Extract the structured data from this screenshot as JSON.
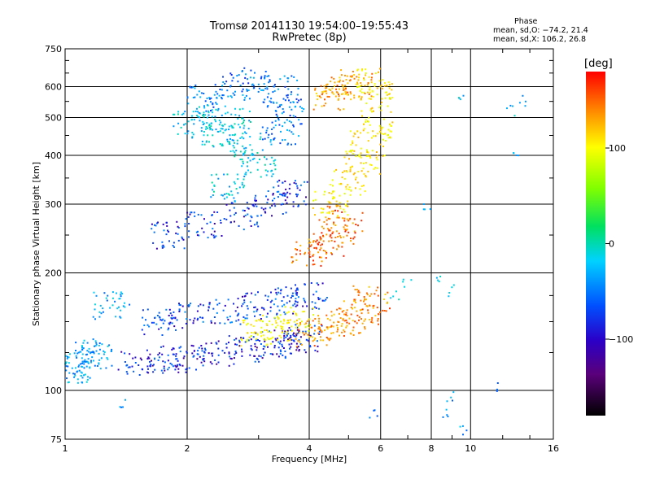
{
  "header": {
    "title_line1": "Tromsø 20141130 19:54:00–19:55:43",
    "title_line2": "RwPretec (8p)"
  },
  "phase_info": {
    "title": "Phase",
    "line_o": "mean, sd,O: −74.2, 21.4",
    "line_x": "mean, sd,X: 106.2, 26.8"
  },
  "colorbar": {
    "unit": "[deg]",
    "ticks": [
      "100",
      "0",
      "−100"
    ],
    "tick_values": [
      100,
      0,
      -100
    ],
    "range": [
      -180,
      180
    ],
    "colormap": "rainbow (black-purple-blue-cyan-green-yellow-orange-red)"
  },
  "chart_data": {
    "type": "scatter",
    "xlabel": "Frequency [MHz]",
    "ylabel": "Stationary phase Virtual Height [km]",
    "xscale": "log",
    "yscale": "log",
    "xlim": [
      1,
      16
    ],
    "ylim": [
      75,
      750
    ],
    "xticks": [
      1,
      2,
      4,
      6,
      8,
      10,
      16
    ],
    "xtick_labels": [
      "1",
      "2",
      "4",
      "6",
      "8",
      "10",
      "16"
    ],
    "yticks": [
      75,
      100,
      200,
      300,
      400,
      500,
      600,
      750
    ],
    "ytick_labels": [
      "75",
      "100",
      "200",
      "300",
      "400",
      "500",
      "600",
      "750"
    ],
    "grid": true,
    "color_encodes": "phase [deg]",
    "clusters": [
      {
        "desc": "O-mode lower trace (blue)",
        "phase": -110,
        "points": [
          [
            1.5,
            117
          ],
          [
            1.8,
            120
          ],
          [
            2.0,
            122
          ],
          [
            2.4,
            125
          ],
          [
            2.8,
            128
          ],
          [
            3.2,
            131
          ],
          [
            3.6,
            134
          ],
          [
            3.9,
            136
          ]
        ]
      },
      {
        "desc": "O-mode mid band (blue)",
        "phase": -100,
        "points": [
          [
            1.7,
            150
          ],
          [
            2.0,
            155
          ],
          [
            2.5,
            160
          ],
          [
            3.0,
            165
          ],
          [
            3.5,
            170
          ],
          [
            4.0,
            175
          ]
        ]
      },
      {
        "desc": "low-frequency scatter",
        "phase": -70,
        "points": [
          [
            1.03,
            118
          ],
          [
            1.05,
            113
          ],
          [
            1.1,
            125
          ],
          [
            1.2,
            123
          ],
          [
            1.3,
            165
          ]
        ]
      },
      {
        "desc": "O-mode upper band (blue)",
        "phase": -105,
        "points": [
          [
            1.8,
            250
          ],
          [
            2.2,
            265
          ],
          [
            2.7,
            280
          ],
          [
            3.2,
            300
          ],
          [
            3.6,
            320
          ]
        ]
      },
      {
        "desc": "F2 cyan region",
        "phase": -55,
        "points": [
          [
            2.0,
            480
          ],
          [
            2.3,
            500
          ],
          [
            2.6,
            490
          ],
          [
            2.4,
            450
          ],
          [
            2.8,
            420
          ],
          [
            3.0,
            380
          ],
          [
            2.5,
            330
          ]
        ]
      },
      {
        "desc": "F2 top blue",
        "phase": -85,
        "points": [
          [
            2.2,
            560
          ],
          [
            2.6,
            600
          ],
          [
            3.0,
            620
          ],
          [
            3.4,
            590
          ],
          [
            3.5,
            520
          ],
          [
            3.4,
            460
          ]
        ]
      },
      {
        "desc": "X-mode lower trace (orange/red)",
        "phase": 140,
        "points": [
          [
            4.1,
            140
          ],
          [
            4.5,
            145
          ],
          [
            5.0,
            150
          ],
          [
            5.4,
            160
          ],
          [
            5.7,
            172
          ]
        ]
      },
      {
        "desc": "X-mode yellow trace",
        "phase": 95,
        "points": [
          [
            3.0,
            140
          ],
          [
            3.3,
            145
          ],
          [
            3.7,
            152
          ]
        ]
      },
      {
        "desc": "X-mode mid band (red)",
        "phase": 150,
        "points": [
          [
            4.0,
            225
          ],
          [
            4.4,
            235
          ],
          [
            4.7,
            255
          ],
          [
            4.9,
            275
          ]
        ]
      },
      {
        "desc": "X-mode upper yellow",
        "phase": 105,
        "points": [
          [
            4.5,
            300
          ],
          [
            5.0,
            340
          ],
          [
            5.4,
            380
          ],
          [
            5.6,
            430
          ],
          [
            5.8,
            480
          ],
          [
            5.8,
            560
          ],
          [
            5.8,
            620
          ]
        ]
      },
      {
        "desc": "X-mode top orange",
        "phase": 135,
        "points": [
          [
            4.5,
            560
          ],
          [
            4.8,
            620
          ],
          [
            5.2,
            600
          ]
        ]
      },
      {
        "desc": "sparse high-frequency echoes",
        "phase": -60,
        "points": [
          [
            6.5,
            175
          ],
          [
            7.0,
            190
          ],
          [
            8.5,
            190
          ],
          [
            9.0,
            180
          ],
          [
            7.8,
            300
          ],
          [
            9.5,
            560
          ],
          [
            12.5,
            520
          ],
          [
            13.0,
            410
          ],
          [
            13.5,
            550
          ]
        ]
      },
      {
        "desc": "sparse low echoes",
        "phase": -80,
        "points": [
          [
            1.4,
            92
          ],
          [
            5.8,
            87
          ],
          [
            9.0,
            97
          ],
          [
            9.5,
            79
          ],
          [
            8.8,
            88
          ],
          [
            11.5,
            102
          ]
        ]
      }
    ]
  }
}
